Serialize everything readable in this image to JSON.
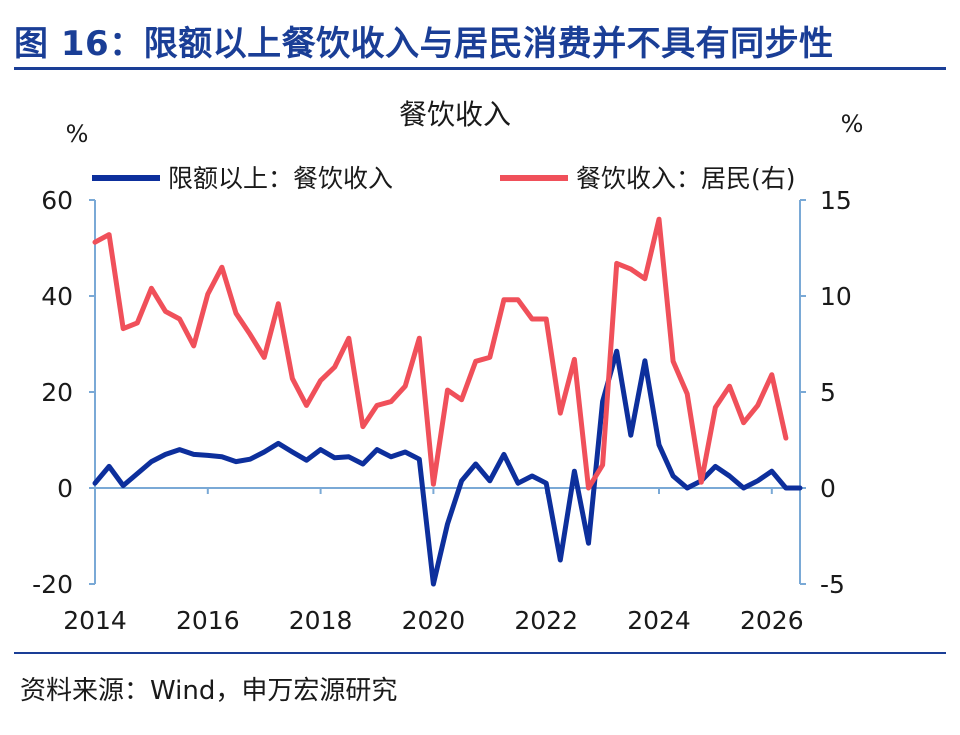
{
  "header": {
    "title": "图 16：限额以上餐饮收入与居民消费并不具有同步性"
  },
  "footer": {
    "source": "资料来源：Wind，申万宏源研究"
  },
  "colors": {
    "title": "#1a3e96",
    "axis": "#7aa9d6",
    "series_dark_blue": "#0d2f9c",
    "series_red": "#f0505a"
  },
  "chart_data": {
    "type": "line",
    "title": "餐饮收入",
    "left_unit": "%",
    "right_unit": "%",
    "y_left": {
      "min": -20,
      "max": 60,
      "ticks": [
        60,
        40,
        20,
        0,
        -20
      ]
    },
    "y_right": {
      "min": -5,
      "max": 15,
      "ticks": [
        15,
        10,
        5,
        0,
        -5
      ]
    },
    "x_ticks": [
      "2014",
      "2016",
      "2018",
      "2020",
      "2022",
      "2024",
      "2026"
    ],
    "x_range": [
      2014,
      2026.5
    ],
    "legend_position": "top",
    "grid": false,
    "series": [
      {
        "name": "限额以上：餐饮收入",
        "axis": "left",
        "color": "#0d2f9c",
        "x": [
          2014.0,
          2014.25,
          2014.5,
          2014.75,
          2015.0,
          2015.25,
          2015.5,
          2015.75,
          2016.0,
          2016.25,
          2016.5,
          2016.75,
          2017.0,
          2017.25,
          2017.5,
          2017.75,
          2018.0,
          2018.25,
          2018.5,
          2018.75,
          2019.0,
          2019.25,
          2019.5,
          2019.75,
          2020.0,
          2020.25,
          2020.5,
          2020.75,
          2021.0,
          2021.25,
          2021.5,
          2021.75,
          2022.0,
          2022.25,
          2022.5,
          2022.75,
          2023.0,
          2023.25,
          2023.5,
          2023.75,
          2024.0,
          2024.25,
          2024.5,
          2024.75,
          2025.0,
          2025.25,
          2025.5,
          2025.75,
          2026.0,
          2026.25,
          2026.5
        ],
        "values": [
          1.0,
          4.5,
          0.5,
          3.0,
          5.5,
          7.0,
          8.0,
          7.0,
          6.8,
          6.5,
          5.5,
          6.0,
          7.5,
          9.3,
          7.5,
          5.8,
          8.0,
          6.3,
          6.5,
          5.0,
          8.0,
          6.5,
          7.5,
          6.0,
          -20.0,
          -7.5,
          1.5,
          5.0,
          1.5,
          7.0,
          1.0,
          2.5,
          1.0,
          -15.0,
          3.5,
          -11.5,
          18.0,
          28.5,
          11.0,
          26.5,
          9.0,
          2.5,
          0.0,
          1.5,
          4.5,
          2.5,
          0.0,
          1.5,
          3.5,
          0.0,
          0.0
        ]
      },
      {
        "name": "餐饮收入：居民(右)",
        "axis": "right",
        "color": "#f0505a",
        "x": [
          2014.0,
          2014.25,
          2014.5,
          2014.75,
          2015.0,
          2015.25,
          2015.5,
          2015.75,
          2016.0,
          2016.25,
          2016.5,
          2016.75,
          2017.0,
          2017.25,
          2017.5,
          2017.75,
          2018.0,
          2018.25,
          2018.5,
          2018.75,
          2019.0,
          2019.25,
          2019.5,
          2019.75,
          2020.0,
          2020.25,
          2020.5,
          2020.75,
          2021.0,
          2021.25,
          2021.5,
          2021.75,
          2022.0,
          2022.25,
          2022.5,
          2022.75,
          2023.0,
          2023.25,
          2023.5,
          2023.75,
          2024.0,
          2024.25,
          2024.5,
          2024.75,
          2025.0,
          2025.25,
          2025.5,
          2025.75,
          2026.0,
          2026.25
        ],
        "values": [
          12.8,
          13.2,
          8.3,
          8.6,
          10.4,
          9.2,
          8.8,
          7.4,
          10.1,
          11.5,
          9.1,
          8.0,
          6.8,
          9.6,
          5.7,
          4.3,
          5.6,
          6.3,
          7.8,
          3.2,
          4.3,
          4.5,
          5.3,
          7.8,
          0.2,
          5.1,
          4.6,
          6.6,
          6.8,
          9.8,
          9.8,
          8.8,
          8.8,
          3.9,
          6.7,
          0.0,
          1.2,
          11.7,
          11.4,
          10.9,
          14.0,
          6.6,
          4.9,
          0.3,
          4.2,
          5.3,
          3.4,
          4.3,
          5.9,
          2.6
        ]
      }
    ]
  }
}
